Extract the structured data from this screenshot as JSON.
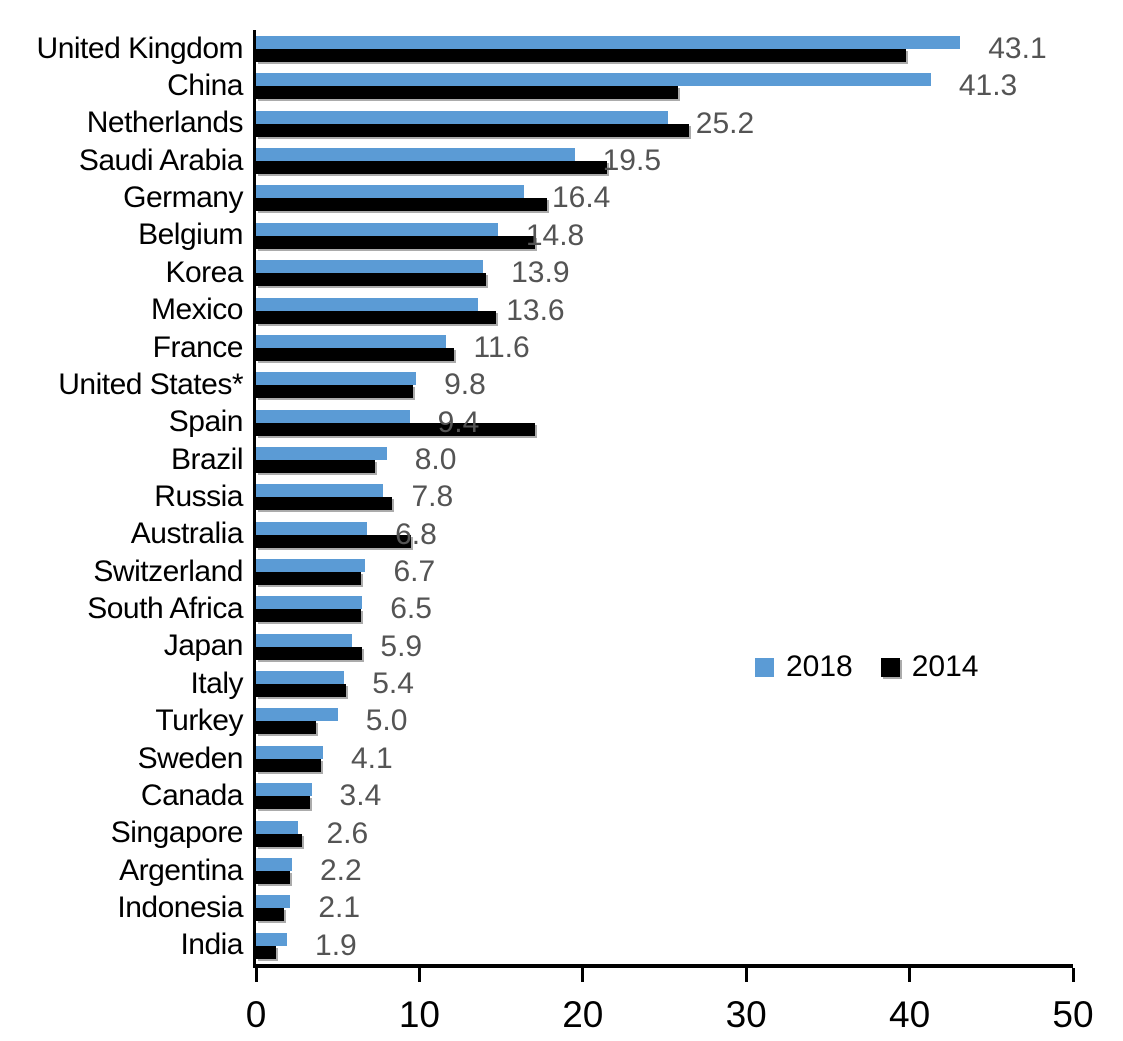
{
  "chart_data": {
    "type": "bar",
    "orientation": "horizontal",
    "title": "",
    "xlabel": "",
    "ylabel": "",
    "xlim": [
      0,
      50
    ],
    "xticks": [
      0,
      10,
      20,
      30,
      40,
      50
    ],
    "grid": false,
    "legend_position": "middle-right",
    "categories": [
      "United Kingdom",
      "China",
      "Netherlands",
      "Saudi Arabia",
      "Germany",
      "Belgium",
      "Korea",
      "Mexico",
      "France",
      "United States*",
      "Spain",
      "Brazil",
      "Russia",
      "Australia",
      "Switzerland",
      "South Africa",
      "Japan",
      "Italy",
      "Turkey",
      "Sweden",
      "Canada",
      "Singapore",
      "Argentina",
      "Indonesia",
      "India"
    ],
    "series": [
      {
        "name": "2018",
        "color": "#5B9BD5",
        "values": [
          43.1,
          41.3,
          25.2,
          19.5,
          16.4,
          14.8,
          13.9,
          13.6,
          11.6,
          9.8,
          9.4,
          8.0,
          7.8,
          6.8,
          6.7,
          6.5,
          5.9,
          5.4,
          5.0,
          4.1,
          3.4,
          2.6,
          2.2,
          2.1,
          1.9
        ]
      },
      {
        "name": "2014",
        "color": "#000000",
        "values": [
          39.8,
          25.8,
          26.5,
          21.5,
          17.8,
          17.1,
          14.1,
          14.7,
          12.1,
          9.6,
          17.1,
          7.3,
          8.3,
          9.5,
          6.4,
          6.4,
          6.5,
          5.5,
          3.7,
          4.0,
          3.3,
          2.8,
          2.1,
          1.7,
          1.2
        ]
      }
    ],
    "value_labels": [
      "43.1",
      "41.3",
      "25.2",
      "19.5",
      "16.4",
      "14.8",
      "13.9",
      "13.6",
      "11.6",
      "9.8",
      "9.4",
      "8.0",
      "7.8",
      "6.8",
      "6.7",
      "6.5",
      "5.9",
      "5.4",
      "5.0",
      "4.1",
      "3.4",
      "2.6",
      "2.2",
      "2.1",
      "1.9"
    ],
    "xtick_labels": [
      "0",
      "10",
      "20",
      "30",
      "40",
      "50"
    ]
  },
  "legend": {
    "items": [
      {
        "label": "2018",
        "color": "#5B9BD5"
      },
      {
        "label": "2014",
        "color": "#000000"
      }
    ]
  },
  "colors": {
    "bar_2018": "#5B9BD5",
    "bar_2014": "#000000",
    "value_label": "#545454",
    "axis": "#000000"
  }
}
